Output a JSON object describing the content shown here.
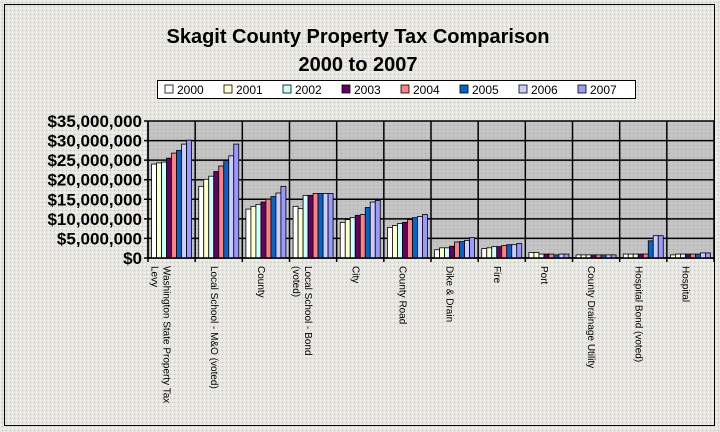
{
  "chart_data": {
    "type": "bar",
    "title": "Skagit County Property Tax Comparison",
    "subtitle": "2000 to 2007",
    "xlabel": "",
    "ylabel": "",
    "ylim": [
      0,
      35000000
    ],
    "yticks": [
      0,
      5000000,
      10000000,
      15000000,
      20000000,
      25000000,
      30000000,
      35000000
    ],
    "ytick_labels": [
      "$0",
      "$5,000,000",
      "$10,000,000",
      "$15,000,000",
      "$20,000,000",
      "$25,000,000",
      "$30,000,000",
      "$35,000,000"
    ],
    "grid": true,
    "legend_position": "top",
    "categories": [
      "Washington State Property Tax Levy",
      "Local School - M&O (voted)",
      "County",
      "Local School - Bond (voted)",
      "City",
      "County Road",
      "Dike & Drain",
      "Fire",
      "Port",
      "County Drainage Utility",
      "Hospital Bond (voted)",
      "Hospital"
    ],
    "series": [
      {
        "name": "2000",
        "color": "#FFFFFF",
        "values": [
          24000000,
          18300000,
          12500000,
          13200000,
          9100000,
          7800000,
          2100000,
          2400000,
          1400000,
          800000,
          1000000,
          800000
        ]
      },
      {
        "name": "2001",
        "color": "#FFFFCC",
        "values": [
          24300000,
          20100000,
          13200000,
          12600000,
          9800000,
          8300000,
          2600000,
          2600000,
          1400000,
          800000,
          1000000,
          1000000
        ]
      },
      {
        "name": "2002",
        "color": "#CCFFFF",
        "values": [
          24500000,
          20900000,
          13700000,
          16000000,
          10300000,
          8800000,
          2600000,
          2900000,
          1000000,
          800000,
          1000000,
          1000000
        ]
      },
      {
        "name": "2003",
        "color": "#660066",
        "values": [
          25500000,
          22100000,
          14300000,
          16000000,
          10900000,
          9100000,
          3000000,
          2900000,
          1000000,
          800000,
          1000000,
          1000000
        ]
      },
      {
        "name": "2004",
        "color": "#FF8080",
        "values": [
          26800000,
          23500000,
          15000000,
          16500000,
          11100000,
          9800000,
          4100000,
          3200000,
          1000000,
          800000,
          1000000,
          1000000
        ]
      },
      {
        "name": "2005",
        "color": "#0066CC",
        "values": [
          27500000,
          24900000,
          15700000,
          16500000,
          12900000,
          10300000,
          4200000,
          3400000,
          800000,
          800000,
          4400000,
          1000000
        ]
      },
      {
        "name": "2006",
        "color": "#CCCCFF",
        "values": [
          29100000,
          26100000,
          16600000,
          16500000,
          14300000,
          10600000,
          4500000,
          3400000,
          1000000,
          800000,
          5700000,
          1300000
        ]
      },
      {
        "name": "2007",
        "color": "#9999FF",
        "values": [
          30100000,
          29100000,
          18300000,
          16500000,
          14700000,
          11100000,
          5200000,
          3700000,
          1000000,
          800000,
          5700000,
          1300000
        ]
      }
    ]
  }
}
